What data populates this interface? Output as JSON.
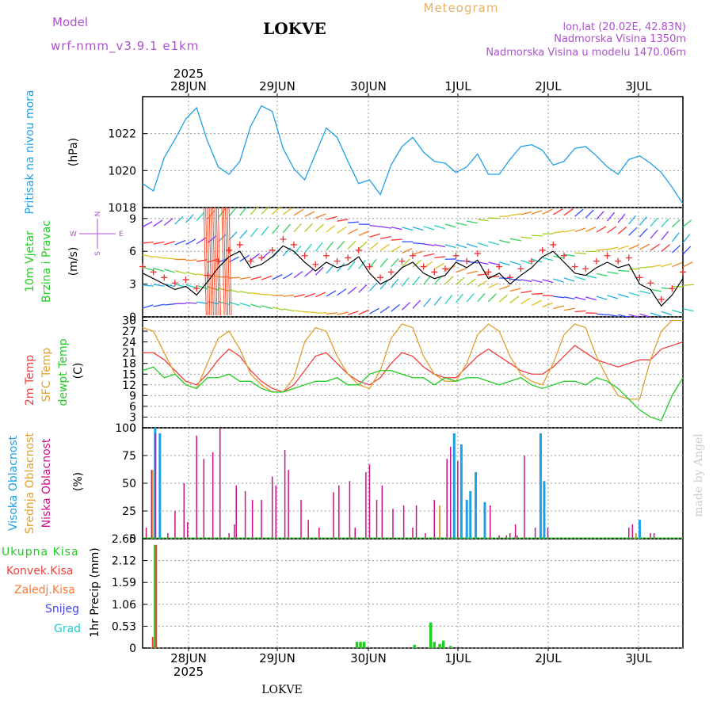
{
  "header": {
    "model_label": "Model",
    "model_name": "wrf-nmm_v3.9.1 e1km",
    "station": "LOKVE",
    "meteogram_label": "Meteogram",
    "coords": "lon,lat (20.02E, 42.83N)",
    "altitude": "Nadmorska Visina 1350m",
    "model_altitude": "Nadmorska Visina u modelu 1470.06m",
    "watermark": "made by Angel",
    "footer_station": "LOKVE"
  },
  "colors": {
    "pressure": "#1ea0e6",
    "temp2m": "#ee4040",
    "sfc_temp": "#e0a030",
    "dewpoint": "#22cc22",
    "high_cloud": "#1ea0e6",
    "mid_cloud": "#e0a030",
    "low_cloud": "#cc1188",
    "total_precip": "#22cc22",
    "conv_precip": "#ee4040",
    "label_purple": "#b050d0",
    "meteogram_orange": "#e8b060"
  },
  "time_axis": {
    "year_top": "2025",
    "year_bottom": "2025",
    "day_labels": [
      "28JUN",
      "29JUN",
      "30JUN",
      "1JUL",
      "2JUL",
      "3JUL"
    ]
  },
  "panels": {
    "pressure": {
      "label_line1": "Pritisak na nivou mora",
      "unit": "(hPa)",
      "ticks": [
        "1018",
        "1020",
        "1022"
      ]
    },
    "wind": {
      "label_line1": "10m Vjetar",
      "label_line2": "Brzina i Pravac",
      "unit": "(m/s)",
      "ticks": [
        "0",
        "3",
        "6",
        "9"
      ],
      "compass_n": "N",
      "compass_s": "S",
      "compass_w": "W",
      "compass_e": "E"
    },
    "temperature": {
      "label_temp": "2m Temp",
      "label_sfc": "SFC Temp",
      "label_dew": "dewpt Temp",
      "unit": "(C)",
      "ticks": [
        "0",
        "3",
        "6",
        "9",
        "12",
        "15",
        "18",
        "21",
        "24",
        "27",
        "30"
      ]
    },
    "clouds": {
      "label_high": "Visoka Oblacnost",
      "label_mid": "Srednja Oblacnost",
      "label_low": "Niska Oblacnost",
      "unit": "(%)",
      "ticks": [
        "0",
        "25",
        "50",
        "75",
        "100"
      ]
    },
    "precip": {
      "label_total": "Ukupna Kisa",
      "label_conv": "Konvek.Kisa",
      "label_frozen": "Zaledj.Kisa",
      "label_snow": "Snijeg",
      "label_hail": "Grad",
      "unit": "1hr Precip (mm)",
      "ticks": [
        "0",
        "0.53",
        "1.06",
        "1.59",
        "2.12",
        "2.65"
      ]
    }
  },
  "chart_data": [
    {
      "type": "line",
      "name": "Pritisak na nivou mora",
      "ylim": [
        1018,
        1024
      ],
      "x_hours": [
        0,
        3,
        6,
        9,
        12,
        15,
        18,
        21,
        24,
        27,
        30,
        33,
        36,
        39,
        42,
        45,
        48,
        51,
        54,
        57,
        60,
        63,
        66,
        69,
        72,
        75,
        78,
        81,
        84,
        87,
        90,
        93,
        96,
        99,
        102,
        105,
        108,
        111,
        114,
        117,
        120,
        123,
        126,
        129,
        132,
        135,
        138,
        141,
        144,
        147,
        150
      ],
      "values": [
        1019.3,
        1018.9,
        1020.7,
        1021.7,
        1022.8,
        1023.4,
        1021.6,
        1020.2,
        1019.8,
        1020.5,
        1022.4,
        1023.5,
        1023.2,
        1021.2,
        1020.1,
        1019.5,
        1020.9,
        1022.3,
        1021.8,
        1020.5,
        1019.3,
        1019.5,
        1018.7,
        1020.3,
        1021.3,
        1021.8,
        1021.0,
        1020.5,
        1020.4,
        1019.9,
        1020.2,
        1020.9,
        1019.8,
        1019.8,
        1020.6,
        1021.3,
        1021.4,
        1021.1,
        1020.3,
        1020.5,
        1021.2,
        1021.3,
        1020.8,
        1020.2,
        1019.8,
        1020.6,
        1020.8,
        1020.4,
        1019.9,
        1019.1,
        1018.2
      ]
    },
    {
      "type": "line",
      "name": "10m Vjetar Brzina",
      "ylim": [
        0,
        10
      ],
      "x_hours": [
        0,
        3,
        6,
        9,
        12,
        15,
        18,
        21,
        24,
        27,
        30,
        33,
        36,
        39,
        42,
        45,
        48,
        51,
        54,
        57,
        60,
        63,
        66,
        69,
        72,
        75,
        78,
        81,
        84,
        87,
        90,
        93,
        96,
        99,
        102,
        105,
        108,
        111,
        114,
        117,
        120,
        123,
        126,
        129,
        132,
        135,
        138,
        141,
        144,
        147,
        150
      ],
      "values": [
        4.0,
        3.5,
        3.0,
        2.5,
        2.8,
        2.0,
        3.2,
        4.5,
        5.5,
        6.0,
        4.5,
        4.8,
        5.5,
        6.5,
        6.0,
        5.0,
        4.2,
        5.0,
        4.5,
        4.8,
        5.5,
        4.0,
        3.0,
        3.5,
        4.5,
        5.0,
        4.0,
        3.5,
        3.8,
        5.0,
        4.5,
        5.2,
        3.5,
        4.0,
        3.0,
        3.8,
        4.5,
        5.5,
        6.0,
        5.0,
        4.0,
        3.8,
        4.5,
        5.0,
        4.5,
        4.8,
        3.0,
        2.5,
        1.0,
        2.0,
        3.5
      ]
    },
    {
      "type": "line",
      "title": "",
      "ylim": [
        0,
        31
      ],
      "x_hours": [
        0,
        3,
        6,
        9,
        12,
        15,
        18,
        21,
        24,
        27,
        30,
        33,
        36,
        39,
        42,
        45,
        48,
        51,
        54,
        57,
        60,
        63,
        66,
        69,
        72,
        75,
        78,
        81,
        84,
        87,
        90,
        93,
        96,
        99,
        102,
        105,
        108,
        111,
        114,
        117,
        120,
        123,
        126,
        129,
        132,
        135,
        138,
        141,
        144,
        147,
        150
      ],
      "series": [
        {
          "name": "2m Temp",
          "values": [
            21,
            21,
            19,
            16,
            13,
            12,
            15,
            19,
            22,
            20,
            16,
            13,
            11,
            10,
            12,
            16,
            20,
            21,
            18,
            15,
            13,
            12,
            14,
            18,
            21,
            20,
            17,
            15,
            14,
            14,
            17,
            20,
            22,
            20,
            18,
            16,
            15,
            15,
            17,
            20,
            23,
            21,
            19,
            18,
            17,
            18,
            19,
            19,
            22,
            23,
            24
          ]
        },
        {
          "name": "SFC Temp",
          "values": [
            28,
            27,
            21,
            15,
            12,
            11,
            18,
            25,
            27,
            22,
            15,
            12,
            10,
            10,
            14,
            24,
            28,
            27,
            20,
            15,
            12,
            11,
            16,
            25,
            29,
            28,
            20,
            15,
            13,
            13,
            18,
            26,
            29,
            27,
            20,
            15,
            13,
            12,
            18,
            26,
            29,
            28,
            20,
            14,
            9,
            8,
            8,
            19,
            27,
            30,
            30
          ]
        },
        {
          "name": "dewpt Temp",
          "values": [
            16,
            17,
            14,
            15,
            12,
            11,
            14,
            14,
            15,
            13,
            13,
            11,
            10,
            10,
            11,
            12,
            13,
            13,
            14,
            12,
            12,
            15,
            16,
            16,
            15,
            14,
            14,
            12,
            14,
            13,
            14,
            14,
            13,
            12,
            13,
            14,
            12,
            11,
            12,
            13,
            13,
            12,
            14,
            13,
            11,
            8,
            5,
            3,
            2,
            9,
            14
          ]
        }
      ]
    },
    {
      "type": "bar",
      "title": "",
      "ylim": [
        0,
        100
      ],
      "series": [
        {
          "name": "Visoka Oblacnost",
          "points": [
            [
              3.5,
              100
            ],
            [
              4.8,
              95
            ],
            [
              86.5,
              95
            ],
            [
              88.5,
              85
            ],
            [
              90,
              35
            ],
            [
              91,
              43
            ],
            [
              92.5,
              60
            ],
            [
              95,
              33
            ],
            [
              110.5,
              95
            ],
            [
              111.5,
              52
            ],
            [
              138,
              17
            ]
          ]
        },
        {
          "name": "Srednja Oblacnost",
          "points": [
            [
              2.8,
              62
            ],
            [
              82.5,
              30
            ],
            [
              137,
              5
            ]
          ]
        },
        {
          "name": "Niska Oblacnost",
          "points": [
            [
              1,
              10
            ],
            [
              2.5,
              62
            ],
            [
              3.5,
              95
            ],
            [
              7,
              5
            ],
            [
              9,
              25
            ],
            [
              11.5,
              50
            ],
            [
              12.5,
              15
            ],
            [
              15,
              93
            ],
            [
              17,
              72
            ],
            [
              19.5,
              78
            ],
            [
              21.5,
              100
            ],
            [
              24,
              5
            ],
            [
              25.5,
              13
            ],
            [
              26,
              48
            ],
            [
              28.5,
              43
            ],
            [
              30.5,
              35
            ],
            [
              33,
              35
            ],
            [
              36,
              56
            ],
            [
              37,
              48
            ],
            [
              39.5,
              80
            ],
            [
              40.5,
              62
            ],
            [
              44,
              35
            ],
            [
              46,
              17
            ],
            [
              49,
              10
            ],
            [
              53,
              42
            ],
            [
              54.5,
              48
            ],
            [
              57.5,
              52
            ],
            [
              59,
              10
            ],
            [
              62,
              60
            ],
            [
              63,
              67
            ],
            [
              65,
              35
            ],
            [
              66.5,
              48
            ],
            [
              69.5,
              27
            ],
            [
              72.5,
              30
            ],
            [
              75,
              10
            ],
            [
              76,
              30
            ],
            [
              78.5,
              5
            ],
            [
              81,
              35
            ],
            [
              84.5,
              72
            ],
            [
              85.5,
              83
            ],
            [
              87.5,
              70
            ],
            [
              96.5,
              30
            ],
            [
              99,
              3
            ],
            [
              101,
              3
            ],
            [
              102,
              5
            ],
            [
              103.5,
              13
            ],
            [
              104,
              3
            ],
            [
              106,
              75
            ],
            [
              109,
              10
            ],
            [
              112.5,
              10
            ],
            [
              135,
              10
            ],
            [
              136,
              13
            ],
            [
              141,
              5
            ],
            [
              142,
              5
            ]
          ]
        }
      ]
    },
    {
      "type": "bar",
      "title": "",
      "ylim": [
        0,
        2.65
      ],
      "series": [
        {
          "name": "Ukupna Kisa",
          "points": [
            [
              3.5,
              2.5
            ],
            [
              59.5,
              0.15
            ],
            [
              60.5,
              0.15
            ],
            [
              61.5,
              0.15
            ],
            [
              75.5,
              0.08
            ],
            [
              80,
              0.62
            ],
            [
              81,
              0.15
            ],
            [
              82.5,
              0.1
            ],
            [
              83.5,
              0.18
            ],
            [
              85.5,
              0.05
            ]
          ]
        },
        {
          "name": "Konvek.Kisa",
          "points": [
            [
              2.8,
              0.27
            ],
            [
              3.8,
              2.5
            ]
          ]
        }
      ]
    }
  ]
}
